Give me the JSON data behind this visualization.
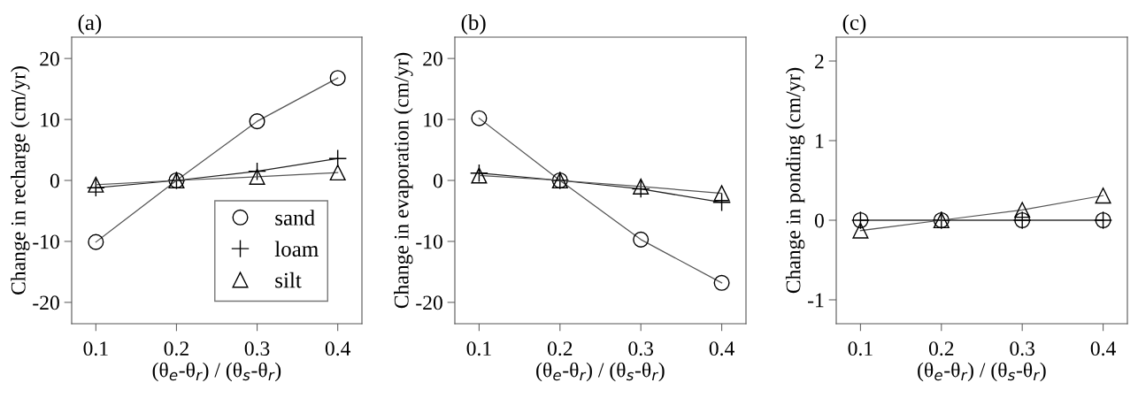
{
  "chart_data": [
    {
      "type": "line",
      "title": "(a)",
      "xlabel": "(θ$_{e}$-θ$_{r}$) / (θ$_{s}$-θ$_{r}$)",
      "ylabel": "Change in recharge (cm/yr)",
      "x": [
        0.1,
        0.2,
        0.3,
        0.4
      ],
      "xlim": [
        0.07,
        0.43
      ],
      "xticks": [
        0.1,
        0.2,
        0.3,
        0.4
      ],
      "ylim": [
        -23.5,
        23.5
      ],
      "yticks": [
        -20,
        -10,
        0,
        10,
        20
      ],
      "legend": "bottom right",
      "grid": false,
      "series": [
        {
          "name": "sand",
          "color": "#555555",
          "marker": "circle",
          "values": [
            -10.1,
            0,
            9.7,
            16.8
          ]
        },
        {
          "name": "loam",
          "color": "#222222",
          "marker": "cross",
          "values": [
            -1.2,
            0,
            1.5,
            3.6
          ]
        },
        {
          "name": "silt",
          "color": "#555555",
          "marker": "triangle",
          "values": [
            -0.7,
            0,
            0.6,
            1.3
          ]
        }
      ]
    },
    {
      "type": "line",
      "title": "(b)",
      "xlabel": "(θ$_{e}$-θ$_{r}$) / (θ$_{s}$-θ$_{r}$)",
      "ylabel": "Change in evaporation (cm/yr)",
      "x": [
        0.1,
        0.2,
        0.3,
        0.4
      ],
      "xlim": [
        0.07,
        0.43
      ],
      "xticks": [
        0.1,
        0.2,
        0.3,
        0.4
      ],
      "ylim": [
        -23.5,
        23.5
      ],
      "yticks": [
        -20,
        -10,
        0,
        10,
        20
      ],
      "grid": false,
      "series": [
        {
          "color": "#555555",
          "marker": "circle",
          "values": [
            10.2,
            0,
            -9.7,
            -16.8
          ]
        },
        {
          "color": "#222222",
          "marker": "cross",
          "values": [
            1.2,
            0,
            -1.4,
            -3.6
          ]
        },
        {
          "color": "#555555",
          "marker": "triangle",
          "values": [
            0.8,
            0,
            -1.0,
            -2.1
          ]
        }
      ]
    },
    {
      "type": "line",
      "title": "(c)",
      "xlabel": "(θ$_{e}$-θ$_{r}$) / (θ$_{s}$-θ$_{r}$)",
      "ylabel": "Change in ponding (cm/yr)",
      "x": [
        0.1,
        0.2,
        0.3,
        0.4
      ],
      "xlim": [
        0.07,
        0.43
      ],
      "xticks": [
        0.1,
        0.2,
        0.3,
        0.4
      ],
      "ylim": [
        -1.3,
        2.3
      ],
      "yticks": [
        -1,
        0,
        1,
        2
      ],
      "grid": false,
      "series": [
        {
          "color": "#555555",
          "marker": "circle",
          "values": [
            0,
            0,
            0,
            0
          ]
        },
        {
          "color": "#222222",
          "marker": "cross",
          "values": [
            0,
            0,
            0,
            0
          ]
        },
        {
          "color": "#555555",
          "marker": "triangle",
          "values": [
            -0.13,
            0,
            0.13,
            0.31
          ]
        }
      ]
    }
  ]
}
